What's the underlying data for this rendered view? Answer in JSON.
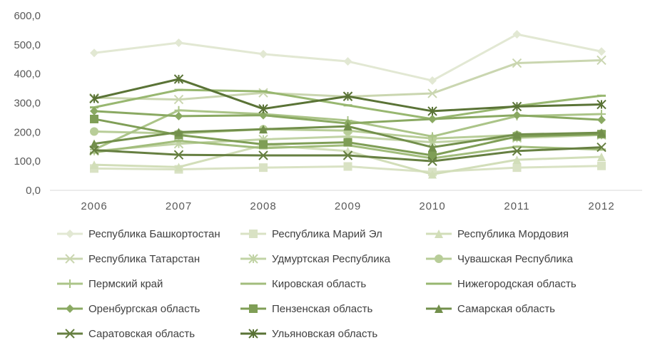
{
  "chart_data": {
    "type": "line",
    "title": "",
    "xlabel": "",
    "ylabel": "",
    "ylim": [
      0,
      600
    ],
    "yticks": [
      "0,0",
      "100,0",
      "200,0",
      "300,0",
      "400,0",
      "500,0",
      "600,0"
    ],
    "categories": [
      "2006",
      "2007",
      "2008",
      "2009",
      "2010",
      "2011",
      "2012"
    ],
    "grid": false,
    "legend_position": "bottom",
    "series": [
      {
        "name": "Республика Башкортостан",
        "values": [
          472,
          507,
          468,
          443,
          377,
          536,
          477
        ],
        "color": "#e2e8d3",
        "marker": "diamond"
      },
      {
        "name": "Республика Марий Эл",
        "values": [
          75,
          72,
          78,
          82,
          63,
          78,
          84
        ],
        "color": "#d9e2c4",
        "marker": "square"
      },
      {
        "name": "Республика Мордовия",
        "values": [
          88,
          80,
          155,
          135,
          55,
          105,
          115
        ],
        "color": "#d2deb9",
        "marker": "triangle"
      },
      {
        "name": "Республика Татарстан",
        "values": [
          318,
          312,
          335,
          322,
          333,
          437,
          447
        ],
        "color": "#cad6b0",
        "marker": "x"
      },
      {
        "name": "Удмуртская Республика",
        "values": [
          135,
          160,
          175,
          185,
          165,
          180,
          190
        ],
        "color": "#c1d3a5",
        "marker": "star"
      },
      {
        "name": "Чувашская Республика",
        "values": [
          202,
          195,
          210,
          205,
          178,
          190,
          195
        ],
        "color": "#b8cd98",
        "marker": "circle"
      },
      {
        "name": "Пермский край",
        "values": [
          140,
          275,
          262,
          240,
          185,
          255,
          262
        ],
        "color": "#abc488",
        "marker": "plus"
      },
      {
        "name": "Кировская область",
        "values": [
          130,
          170,
          145,
          155,
          110,
          150,
          140
        ],
        "color": "#a2bd7c",
        "marker": "dash"
      },
      {
        "name": "Нижегородская область",
        "values": [
          285,
          345,
          340,
          292,
          245,
          290,
          325
        ],
        "color": "#98b770",
        "marker": "dash"
      },
      {
        "name": "Оренбургская область",
        "values": [
          272,
          255,
          258,
          230,
          245,
          258,
          242
        ],
        "color": "#8aa962",
        "marker": "diamond"
      },
      {
        "name": "Пензенская область",
        "values": [
          245,
          190,
          158,
          165,
          120,
          185,
          193
        ],
        "color": "#7f9e56",
        "marker": "square"
      },
      {
        "name": "Самарская область",
        "values": [
          160,
          200,
          210,
          220,
          148,
          192,
          198
        ],
        "color": "#728f4b",
        "marker": "triangle"
      },
      {
        "name": "Саратовская область",
        "values": [
          138,
          122,
          120,
          120,
          100,
          135,
          148
        ],
        "color": "#667f41",
        "marker": "x"
      },
      {
        "name": "Ульяновская область",
        "values": [
          315,
          382,
          280,
          323,
          272,
          288,
          295
        ],
        "color": "#5a7336",
        "marker": "star"
      }
    ]
  }
}
